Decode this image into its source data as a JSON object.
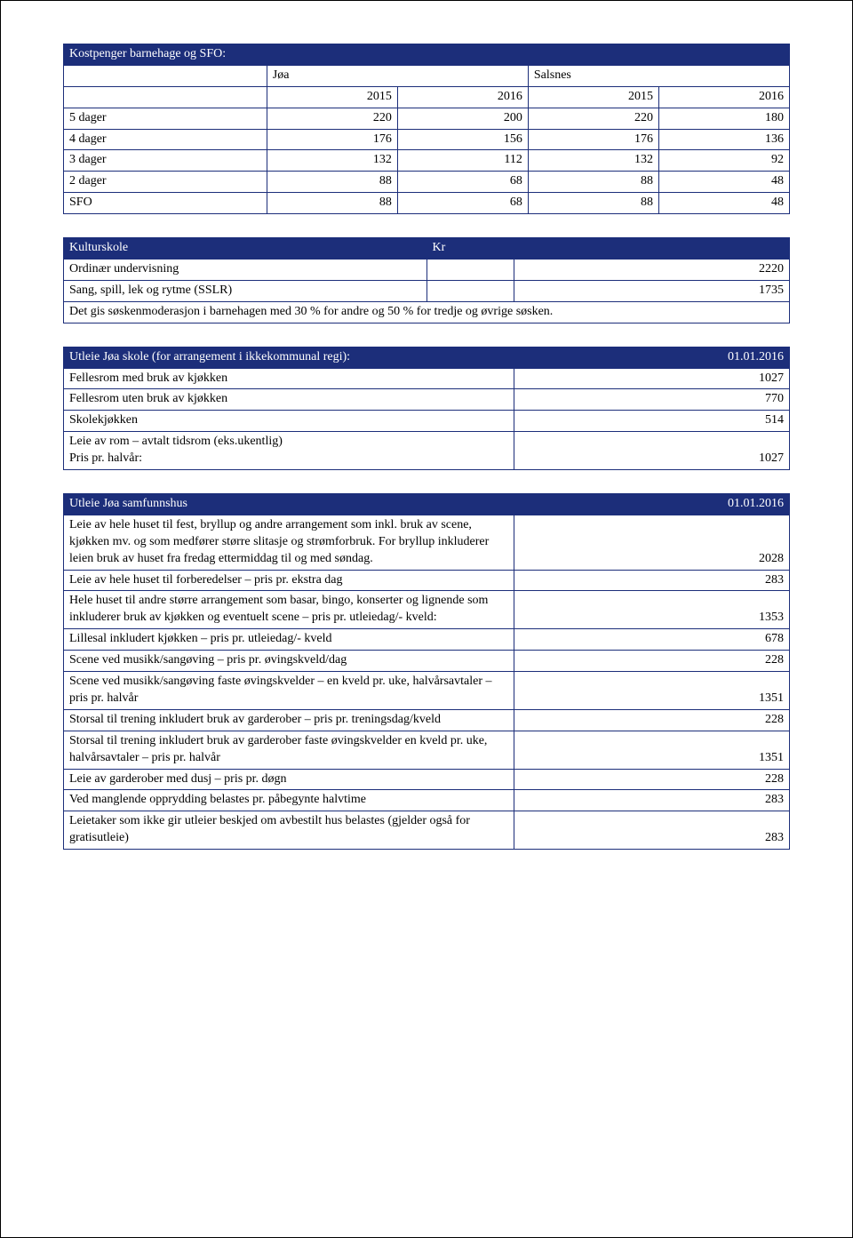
{
  "colors": {
    "header_bg": "#1c2e7a",
    "header_text": "#ffffff",
    "border": "#1c2e7a",
    "page_border": "#000000",
    "text": "#000000"
  },
  "table1": {
    "title": "Kostpenger barnehage og SFO:",
    "group_headers": [
      "Jøa",
      "Salsnes"
    ],
    "year_headers": [
      "2015",
      "2016",
      "2015",
      "2016"
    ],
    "rows": [
      {
        "label": "5 dager",
        "v": [
          "220",
          "200",
          "220",
          "180"
        ]
      },
      {
        "label": "4 dager",
        "v": [
          "176",
          "156",
          "176",
          "136"
        ]
      },
      {
        "label": "3 dager",
        "v": [
          "132",
          "112",
          "132",
          "92"
        ]
      },
      {
        "label": "2 dager",
        "v": [
          "88",
          "68",
          "88",
          "48"
        ]
      },
      {
        "label": "SFO",
        "v": [
          "88",
          "68",
          "88",
          "48"
        ]
      }
    ]
  },
  "table2": {
    "title": "Kulturskole",
    "title_col2": "Kr",
    "rows": [
      {
        "label": "Ordinær undervisning",
        "val": "2220"
      },
      {
        "label": "Sang, spill, lek og rytme (SSLR)",
        "val": "1735"
      }
    ],
    "footnote": "Det gis søskenmoderasjon i barnehagen med 30 % for andre og 50 % for tredje og øvrige søsken."
  },
  "table3": {
    "title": "Utleie Jøa skole (for arrangement i ikkekommunal regi):",
    "date": "01.01.2016",
    "rows": [
      {
        "label": "Fellesrom med bruk av kjøkken",
        "val": "1027"
      },
      {
        "label": "Fellesrom uten bruk av kjøkken",
        "val": "770"
      },
      {
        "label": "Skolekjøkken",
        "val": "514"
      },
      {
        "label": "Leie av rom – avtalt tidsrom (eks.ukentlig)\nPris pr. halvår:",
        "val": "1027"
      }
    ]
  },
  "table4": {
    "title": "Utleie Jøa samfunnshus",
    "date": "01.01.2016",
    "rows": [
      {
        "label": "Leie av hele huset til fest, bryllup og andre arrangement som inkl. bruk av scene, kjøkken mv. og som medfører større slitasje og strømforbruk. For bryllup inkluderer leien bruk av huset fra fredag ettermiddag til og med søndag.",
        "val": "2028"
      },
      {
        "label": "Leie av hele huset til forberedelser – pris pr. ekstra dag",
        "val": "283"
      },
      {
        "label": "Hele huset til andre større arrangement som basar, bingo, konserter og lignende som inkluderer bruk av kjøkken og eventuelt scene – pris pr. utleiedag/- kveld:",
        "val": "1353"
      },
      {
        "label": "Lillesal inkludert kjøkken – pris pr. utleiedag/- kveld",
        "val": "678"
      },
      {
        "label": "Scene ved musikk/sangøving – pris pr. øvingskveld/dag",
        "val": "228"
      },
      {
        "label": "Scene ved musikk/sangøving faste øvingskvelder – en kveld pr. uke, halvårsavtaler – pris pr. halvår",
        "val": "1351"
      },
      {
        "label": "Storsal til trening inkludert bruk av garderober – pris pr. treningsdag/kveld",
        "val": "228"
      },
      {
        "label": "Storsal til trening inkludert bruk av garderober faste øvingskvelder en kveld pr. uke, halvårsavtaler – pris pr. halvår",
        "val": "1351"
      },
      {
        "label": "Leie av garderober med dusj – pris pr. døgn",
        "val": "228"
      },
      {
        "label": "Ved manglende opprydding belastes pr. påbegynte halvtime",
        "val": "283"
      },
      {
        "label": "Leietaker som ikke gir utleier beskjed om avbestilt hus belastes (gjelder også for gratisutleie)",
        "val": "283"
      }
    ]
  }
}
